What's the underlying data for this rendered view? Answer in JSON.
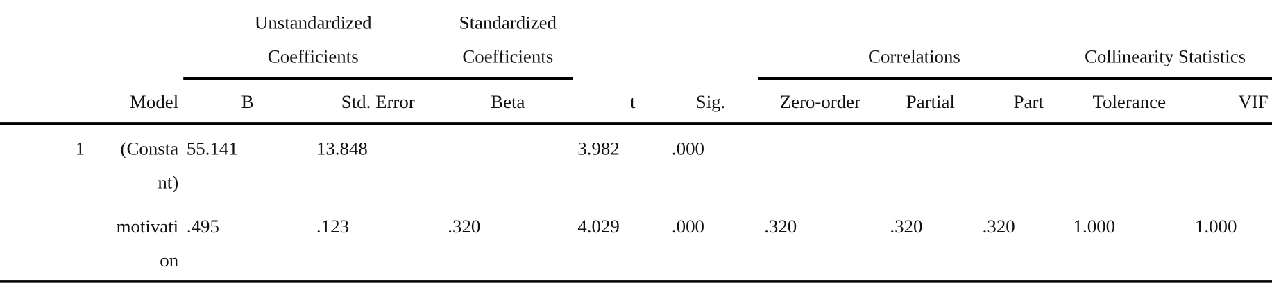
{
  "table": {
    "group_headers": [
      {
        "lines": [
          "Unstandardized",
          "Coefficients"
        ]
      },
      {
        "lines": [
          "Standardized",
          "Coefficients"
        ]
      },
      {
        "lines": [
          "Correlations"
        ]
      },
      {
        "lines": [
          "Collinearity Statistics"
        ]
      }
    ],
    "model_header": "Model",
    "columns": [
      "B",
      "Std. Error",
      "Beta",
      "t",
      "Sig.",
      "Zero-order",
      "Partial",
      "Part",
      "Tolerance",
      "VIF"
    ],
    "rows": [
      {
        "model": "1",
        "label": [
          "(Consta",
          "nt)"
        ],
        "cells": [
          "55.141",
          "13.848",
          null,
          "3.982",
          ".000",
          null,
          null,
          null,
          null,
          null
        ]
      },
      {
        "model": null,
        "label": [
          "motivati",
          "on"
        ],
        "cells": [
          ".495",
          ".123",
          ".320",
          "4.029",
          ".000",
          ".320",
          ".320",
          ".320",
          "1.000",
          "1.000"
        ]
      }
    ]
  }
}
